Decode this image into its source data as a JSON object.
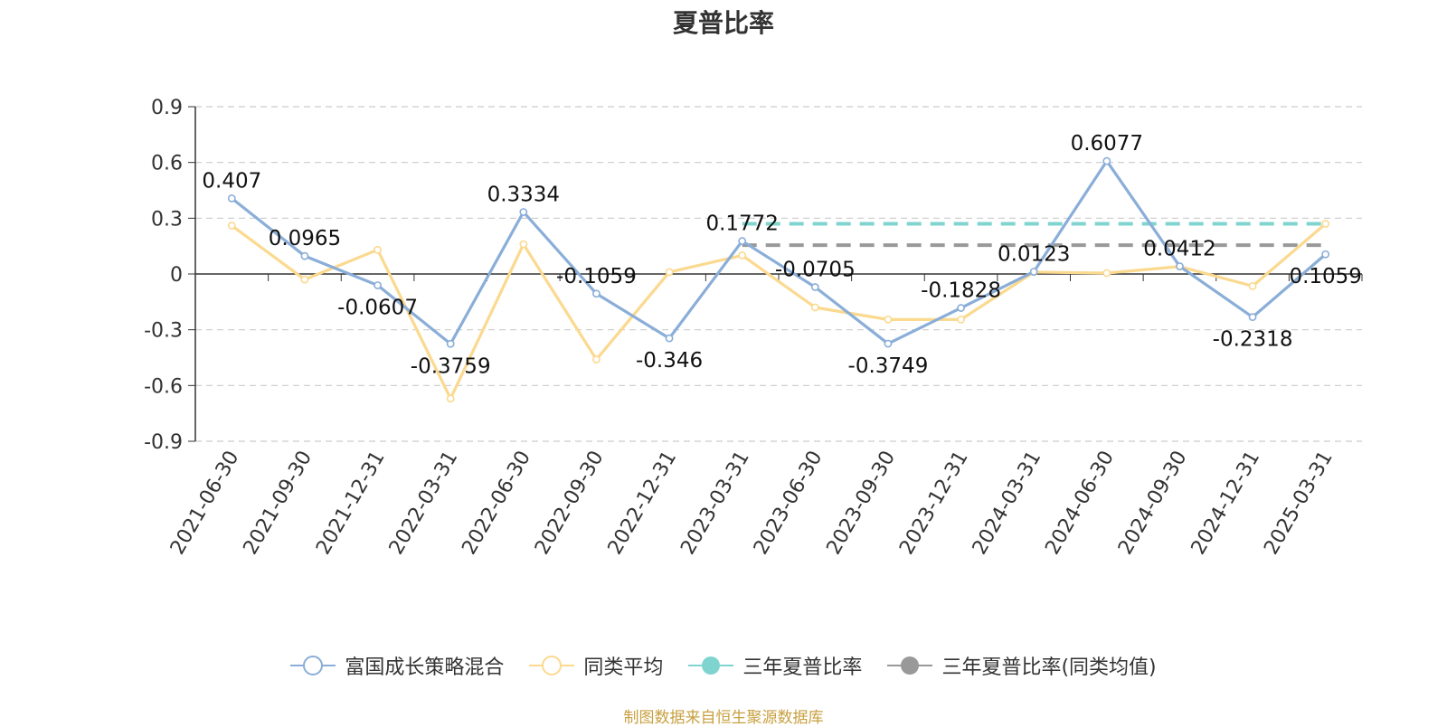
{
  "chart_data": {
    "type": "line",
    "title": "夏普比率",
    "categories": [
      "2021-06-30",
      "2021-09-30",
      "2021-12-31",
      "2022-03-31",
      "2022-06-30",
      "2022-09-30",
      "2022-12-31",
      "2023-03-31",
      "2023-06-30",
      "2023-09-30",
      "2023-12-31",
      "2024-03-31",
      "2024-06-30",
      "2024-09-30",
      "2024-12-31",
      "2025-03-31"
    ],
    "ylim": [
      -0.9,
      0.9
    ],
    "yticks": [
      0.9,
      0.6,
      0.3,
      0,
      -0.3,
      -0.6,
      -0.9
    ],
    "ytick_labels": [
      "0.9",
      "0.6",
      "0.3",
      "0",
      "-0.3",
      "-0.6",
      "-0.9"
    ],
    "grid": true,
    "legend_position": "bottom",
    "series": [
      {
        "name": "富国成长策略混合",
        "color": "#8aaed8",
        "values": [
          0.407,
          0.0965,
          -0.0607,
          -0.3759,
          0.3334,
          -0.1059,
          -0.346,
          0.1772,
          -0.0705,
          -0.3749,
          -0.1828,
          0.0123,
          0.6077,
          0.0412,
          -0.2318,
          0.1059
        ],
        "labels": [
          "0.407",
          "0.0965",
          "-0.0607",
          "-0.3759",
          "0.3334",
          "-0.1059",
          "-0.346",
          "0.1772",
          "-0.0705",
          "-0.3749",
          "-0.1828",
          "0.0123",
          "0.6077",
          "0.0412",
          "-0.2318",
          "0.1059"
        ]
      },
      {
        "name": "同类平均",
        "color": "#fbd98f",
        "values": [
          0.26,
          -0.03,
          0.13,
          -0.67,
          0.16,
          -0.46,
          0.01,
          0.1,
          -0.18,
          -0.245,
          -0.245,
          0.01,
          0.005,
          0.04,
          -0.065,
          0.27
        ]
      },
      {
        "name": "三年夏普比率",
        "color": "#7fd4cf",
        "reference_value": 0.27,
        "from_category": "2023-03-31",
        "to_category": "2025-03-31"
      },
      {
        "name": "三年夏普比率(同类均值)",
        "color": "#999999",
        "reference_value": 0.155,
        "from_category": "2023-03-31",
        "to_category": "2025-03-31"
      }
    ]
  },
  "footer": {
    "source_note": "制图数据来自恒生聚源数据库"
  }
}
